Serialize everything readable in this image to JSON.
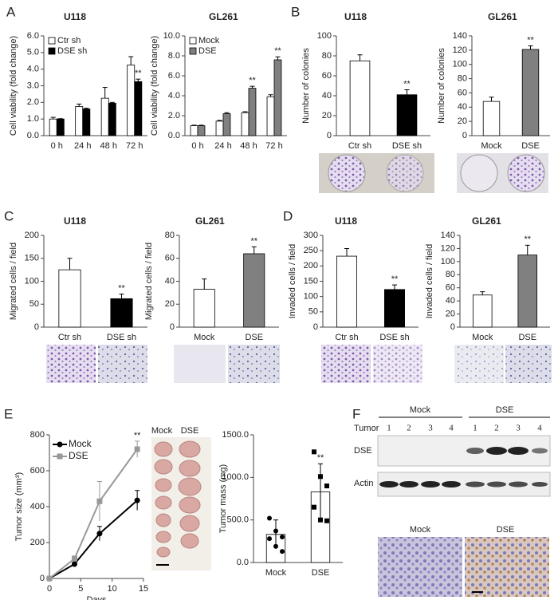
{
  "panel_labels": [
    "A",
    "B",
    "C",
    "D",
    "E",
    "F"
  ],
  "tumor_photo": {
    "groups": [
      "Mock",
      "DSE"
    ]
  },
  "blot": {
    "tumor_label": "Tumor",
    "groups": [
      "Mock",
      "DSE"
    ],
    "lanes": [
      "1",
      "2",
      "3",
      "4",
      "1",
      "2",
      "3",
      "4"
    ],
    "rows": [
      "DSE",
      "Actin"
    ]
  },
  "ihc": {
    "groups": [
      "Mock",
      "DSE"
    ]
  },
  "chart_data": [
    {
      "type": "bar",
      "title": "U118",
      "y_label": "Cell viability (fold change)",
      "categories": [
        "0 h",
        "24 h",
        "48 h",
        "72 h"
      ],
      "series": [
        {
          "name": "Ctr sh",
          "color": "#ffffff",
          "values": [
            1.0,
            1.75,
            2.25,
            4.25
          ],
          "errors": [
            0.1,
            0.15,
            0.65,
            0.5
          ],
          "significance": [
            null,
            null,
            null,
            null
          ]
        },
        {
          "name": "DSE sh",
          "color": "#000000",
          "values": [
            1.0,
            1.6,
            1.95,
            3.25
          ],
          "errors": [
            0.02,
            0.05,
            0.05,
            0.15
          ],
          "significance": [
            null,
            null,
            null,
            "**"
          ]
        }
      ],
      "ylim": [
        0,
        6
      ],
      "yticks": [
        {
          "value": 0,
          "label": "0.0"
        },
        {
          "value": 1,
          "label": "1.0"
        },
        {
          "value": 2,
          "label": "2.0"
        },
        {
          "value": 3,
          "label": "3.0"
        },
        {
          "value": 4,
          "label": "4.0"
        },
        {
          "value": 5,
          "label": "5.0"
        },
        {
          "value": 6,
          "label": "6.0"
        }
      ]
    },
    {
      "type": "bar",
      "title": "GL261",
      "y_label": "Cell viability (fold change)",
      "categories": [
        "0 h",
        "24 h",
        "48 h",
        "72 h"
      ],
      "series": [
        {
          "name": "Mock",
          "color": "#ffffff",
          "values": [
            1.0,
            1.45,
            2.3,
            3.9
          ],
          "errors": [
            0.05,
            0.08,
            0.1,
            0.2
          ],
          "significance": [
            null,
            null,
            null,
            null
          ]
        },
        {
          "name": "DSE",
          "color": "#808080",
          "values": [
            1.0,
            2.2,
            4.75,
            7.6
          ],
          "errors": [
            0.05,
            0.1,
            0.2,
            0.3
          ],
          "significance": [
            null,
            null,
            "**",
            "**"
          ]
        }
      ],
      "ylim": [
        0,
        10
      ],
      "yticks": [
        {
          "value": 0,
          "label": "0.0"
        },
        {
          "value": 2,
          "label": "2.0"
        },
        {
          "value": 4,
          "label": "4.0"
        },
        {
          "value": 6,
          "label": "6.0"
        },
        {
          "value": 8,
          "label": "8.0"
        },
        {
          "value": 10,
          "label": "10.0"
        }
      ]
    },
    {
      "type": "bar",
      "title": "U118",
      "y_label": "Number of colonies",
      "categories": [
        "Ctr sh",
        "DSE sh"
      ],
      "values": [
        75,
        41
      ],
      "errors": [
        6,
        5
      ],
      "colors": [
        "#ffffff",
        "#000000"
      ],
      "significance": [
        null,
        "**"
      ],
      "ylim": [
        0,
        100
      ],
      "yticks": [
        0,
        20,
        40,
        60,
        80,
        100
      ]
    },
    {
      "type": "bar",
      "title": "GL261",
      "y_label": "Number of colonies",
      "categories": [
        "Mock",
        "DSE"
      ],
      "values": [
        48,
        121
      ],
      "errors": [
        6,
        5
      ],
      "colors": [
        "#ffffff",
        "#808080"
      ],
      "significance": [
        null,
        "**"
      ],
      "ylim": [
        0,
        140
      ],
      "yticks": [
        0,
        20,
        40,
        60,
        80,
        100,
        120,
        140
      ]
    },
    {
      "type": "bar",
      "title": "U118",
      "y_label": "Migrated cells / field",
      "categories": [
        "Ctr sh",
        "DSE sh"
      ],
      "values": [
        125,
        62
      ],
      "errors": [
        25,
        10
      ],
      "colors": [
        "#ffffff",
        "#000000"
      ],
      "significance": [
        null,
        "**"
      ],
      "ylim": [
        0,
        200
      ],
      "yticks": [
        0,
        50,
        100,
        150,
        200
      ]
    },
    {
      "type": "bar",
      "title": "GL261",
      "y_label": "Migrated cells / field",
      "categories": [
        "Mock",
        "DSE"
      ],
      "values": [
        33,
        64
      ],
      "errors": [
        9,
        6
      ],
      "colors": [
        "#ffffff",
        "#808080"
      ],
      "significance": [
        null,
        "**"
      ],
      "ylim": [
        0,
        80
      ],
      "yticks": [
        0,
        20,
        40,
        60,
        80
      ]
    },
    {
      "type": "bar",
      "title": "U118",
      "y_label": "Invaded cells / field",
      "categories": [
        "Ctr sh",
        "DSE sh"
      ],
      "values": [
        232,
        123
      ],
      "errors": [
        25,
        15
      ],
      "colors": [
        "#ffffff",
        "#000000"
      ],
      "significance": [
        null,
        "**"
      ],
      "ylim": [
        0,
        300
      ],
      "yticks": [
        0,
        50,
        100,
        150,
        200,
        250,
        300
      ]
    },
    {
      "type": "bar",
      "title": "GL261",
      "y_label": "Invaded cells / field",
      "categories": [
        "Mock",
        "DSE"
      ],
      "values": [
        49,
        110
      ],
      "errors": [
        5,
        15
      ],
      "colors": [
        "#ffffff",
        "#808080"
      ],
      "significance": [
        null,
        "**"
      ],
      "ylim": [
        0,
        140
      ],
      "yticks": [
        0,
        20,
        40,
        60,
        80,
        100,
        120,
        140
      ]
    },
    {
      "type": "line",
      "y_label": "Tumor size (mm³)",
      "x_label": "Days",
      "x": [
        0,
        4,
        8,
        14
      ],
      "series": [
        {
          "name": "Mock",
          "color": "#000000",
          "marker": "circle",
          "values": [
            0,
            80,
            250,
            435
          ],
          "errors": [
            0,
            10,
            40,
            55
          ],
          "significance": [
            null,
            null,
            null,
            null
          ]
        },
        {
          "name": "DSE",
          "color": "#999999",
          "marker": "square",
          "values": [
            0,
            110,
            430,
            720
          ],
          "errors": [
            0,
            15,
            110,
            45
          ],
          "significance": [
            null,
            null,
            null,
            "**"
          ]
        }
      ],
      "xlim": [
        0,
        15
      ],
      "xticks": [
        0,
        5,
        10,
        15
      ],
      "ylim": [
        0,
        800
      ],
      "yticks": [
        0,
        200,
        400,
        600,
        800
      ]
    },
    {
      "type": "bar",
      "y_label": "Tumor mass (mg)",
      "categories": [
        "Mock",
        "DSE"
      ],
      "values": [
        330,
        830
      ],
      "errors": [
        170,
        330
      ],
      "colors": [
        "#ffffff",
        "#ffffff"
      ],
      "significance": [
        null,
        "**"
      ],
      "points": [
        [
          520,
          370,
          300,
          280,
          190,
          130
        ],
        [
          1300,
          1010,
          900,
          650,
          500,
          490
        ]
      ],
      "point_markers": [
        "circle",
        "square"
      ],
      "ylim": [
        0,
        1500
      ],
      "yticks": [
        {
          "value": 0,
          "label": "0.0"
        },
        {
          "value": 500,
          "label": "500.0"
        },
        {
          "value": 1000,
          "label": "1000.0"
        },
        {
          "value": 1500,
          "label": "1500.0"
        }
      ]
    }
  ]
}
